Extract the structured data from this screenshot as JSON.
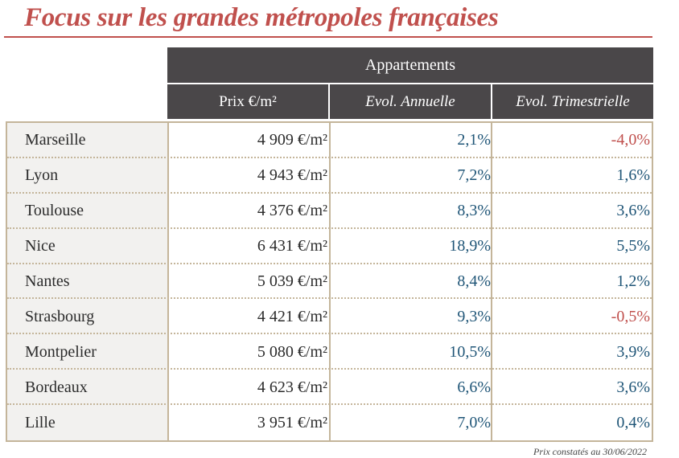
{
  "title": "Focus sur les grandes métropoles françaises",
  "header": {
    "group": "Appartements",
    "columns": [
      "Prix €/m²",
      "Evol. Annuelle",
      "Evol. Trimestrielle"
    ]
  },
  "rows": [
    {
      "city": "Marseille",
      "price": "4 909 €/m²",
      "annual": "2,1%",
      "quarterly": "-4,0%"
    },
    {
      "city": "Lyon",
      "price": "4 943 €/m²",
      "annual": "7,2%",
      "quarterly": "1,6%"
    },
    {
      "city": "Toulouse",
      "price": "4 376 €/m²",
      "annual": "8,3%",
      "quarterly": "3,6%"
    },
    {
      "city": "Nice",
      "price": "6 431 €/m²",
      "annual": "18,9%",
      "quarterly": "5,5%"
    },
    {
      "city": "Nantes",
      "price": "5 039 €/m²",
      "annual": "8,4%",
      "quarterly": "1,2%"
    },
    {
      "city": "Strasbourg",
      "price": "4 421 €/m²",
      "annual": "9,3%",
      "quarterly": "-0,5%"
    },
    {
      "city": "Montpelier",
      "price": "5 080 €/m²",
      "annual": "10,5%",
      "quarterly": "3,9%"
    },
    {
      "city": "Bordeaux",
      "price": "4 623 €/m²",
      "annual": "6,6%",
      "quarterly": "3,6%"
    },
    {
      "city": "Lille",
      "price": "3 951 €/m²",
      "annual": "7,0%",
      "quarterly": "0,4%"
    }
  ],
  "footnote": "Prix constatés au 30/06/2022",
  "colors": {
    "title": "#c0504d",
    "header_bg": "#4a4749",
    "positive": "#1f5577",
    "negative": "#c0504d",
    "border": "#c4b59a"
  },
  "chart_data": {
    "type": "table",
    "title": "Focus sur les grandes métropoles françaises",
    "group_header": "Appartements",
    "columns": [
      "",
      "Prix €/m²",
      "Evol. Annuelle",
      "Evol. Trimestrielle"
    ],
    "rows": [
      [
        "Marseille",
        "4 909 €/m²",
        "2,1%",
        "-4,0%"
      ],
      [
        "Lyon",
        "4 943 €/m²",
        "7,2%",
        "1,6%"
      ],
      [
        "Toulouse",
        "4 376 €/m²",
        "8,3%",
        "3,6%"
      ],
      [
        "Nice",
        "6 431 €/m²",
        "18,9%",
        "5,5%"
      ],
      [
        "Nantes",
        "5 039 €/m²",
        "8,4%",
        "1,2%"
      ],
      [
        "Strasbourg",
        "4 421 €/m²",
        "9,3%",
        "-0,5%"
      ],
      [
        "Montpelier",
        "5 080 €/m²",
        "10,5%",
        "3,9%"
      ],
      [
        "Bordeaux",
        "4 623 €/m²",
        "6,6%",
        "3,6%"
      ],
      [
        "Lille",
        "3 951 €/m²",
        "7,0%",
        "0,4%"
      ]
    ]
  }
}
